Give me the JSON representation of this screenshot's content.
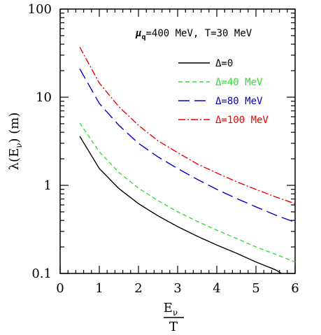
{
  "chart_data": {
    "type": "line",
    "title": "",
    "xlabel": {
      "numerator": "E",
      "numerator_sub": "ν",
      "denominator": "T"
    },
    "ylabel": {
      "prefix": "λ(E",
      "sub": "ν",
      "suffix": ") (m)"
    },
    "annotation": {
      "mu": "μ",
      "mu_sub": "q",
      "text": "=400 MeV, T=30 MeV"
    },
    "xlim": [
      0,
      6
    ],
    "ylim": [
      0.1,
      100
    ],
    "y_scale": "log",
    "x_ticks": [
      "0",
      "1",
      "2",
      "3",
      "4",
      "5",
      "6"
    ],
    "y_ticks": [
      {
        "value": 0.1,
        "label": "0.1"
      },
      {
        "value": 1,
        "label": "1"
      },
      {
        "value": 10,
        "label": "10"
      },
      {
        "value": 100,
        "label": "100"
      }
    ],
    "legend_position": "top-right",
    "series": [
      {
        "name": "Δ=0",
        "color": "#000000",
        "dash": "solid",
        "x": [
          0.5,
          1,
          1.5,
          2,
          2.5,
          3,
          3.5,
          4,
          4.5,
          5,
          5.5,
          5.65
        ],
        "y": [
          3.6,
          1.55,
          0.92,
          0.62,
          0.45,
          0.34,
          0.265,
          0.21,
          0.17,
          0.135,
          0.11,
          0.1
        ]
      },
      {
        "name": "Δ=40 MeV",
        "color": "#33dd33",
        "dash": "short",
        "x": [
          0.5,
          1,
          1.5,
          2,
          2.5,
          3,
          3.5,
          4,
          4.5,
          5,
          5.5,
          6
        ],
        "y": [
          5.1,
          2.4,
          1.4,
          0.93,
          0.67,
          0.5,
          0.39,
          0.31,
          0.25,
          0.2,
          0.165,
          0.135
        ]
      },
      {
        "name": "Δ=80 MeV",
        "color": "#0000cc",
        "dash": "long",
        "x": [
          0.5,
          1,
          1.5,
          2,
          2.5,
          3,
          3.5,
          4,
          4.5,
          5,
          5.5,
          6
        ],
        "y": [
          21,
          8.5,
          4.8,
          3.0,
          2.1,
          1.55,
          1.17,
          0.9,
          0.71,
          0.57,
          0.46,
          0.38
        ]
      },
      {
        "name": "Δ=100 MeV",
        "color": "#ee0000",
        "dash": "dashdot",
        "x": [
          0.5,
          1,
          1.5,
          2,
          2.5,
          3,
          3.5,
          4,
          4.5,
          5,
          5.5,
          6
        ],
        "y": [
          37,
          14.5,
          7.8,
          4.8,
          3.2,
          2.35,
          1.75,
          1.38,
          1.1,
          0.9,
          0.74,
          0.62
        ]
      }
    ]
  }
}
